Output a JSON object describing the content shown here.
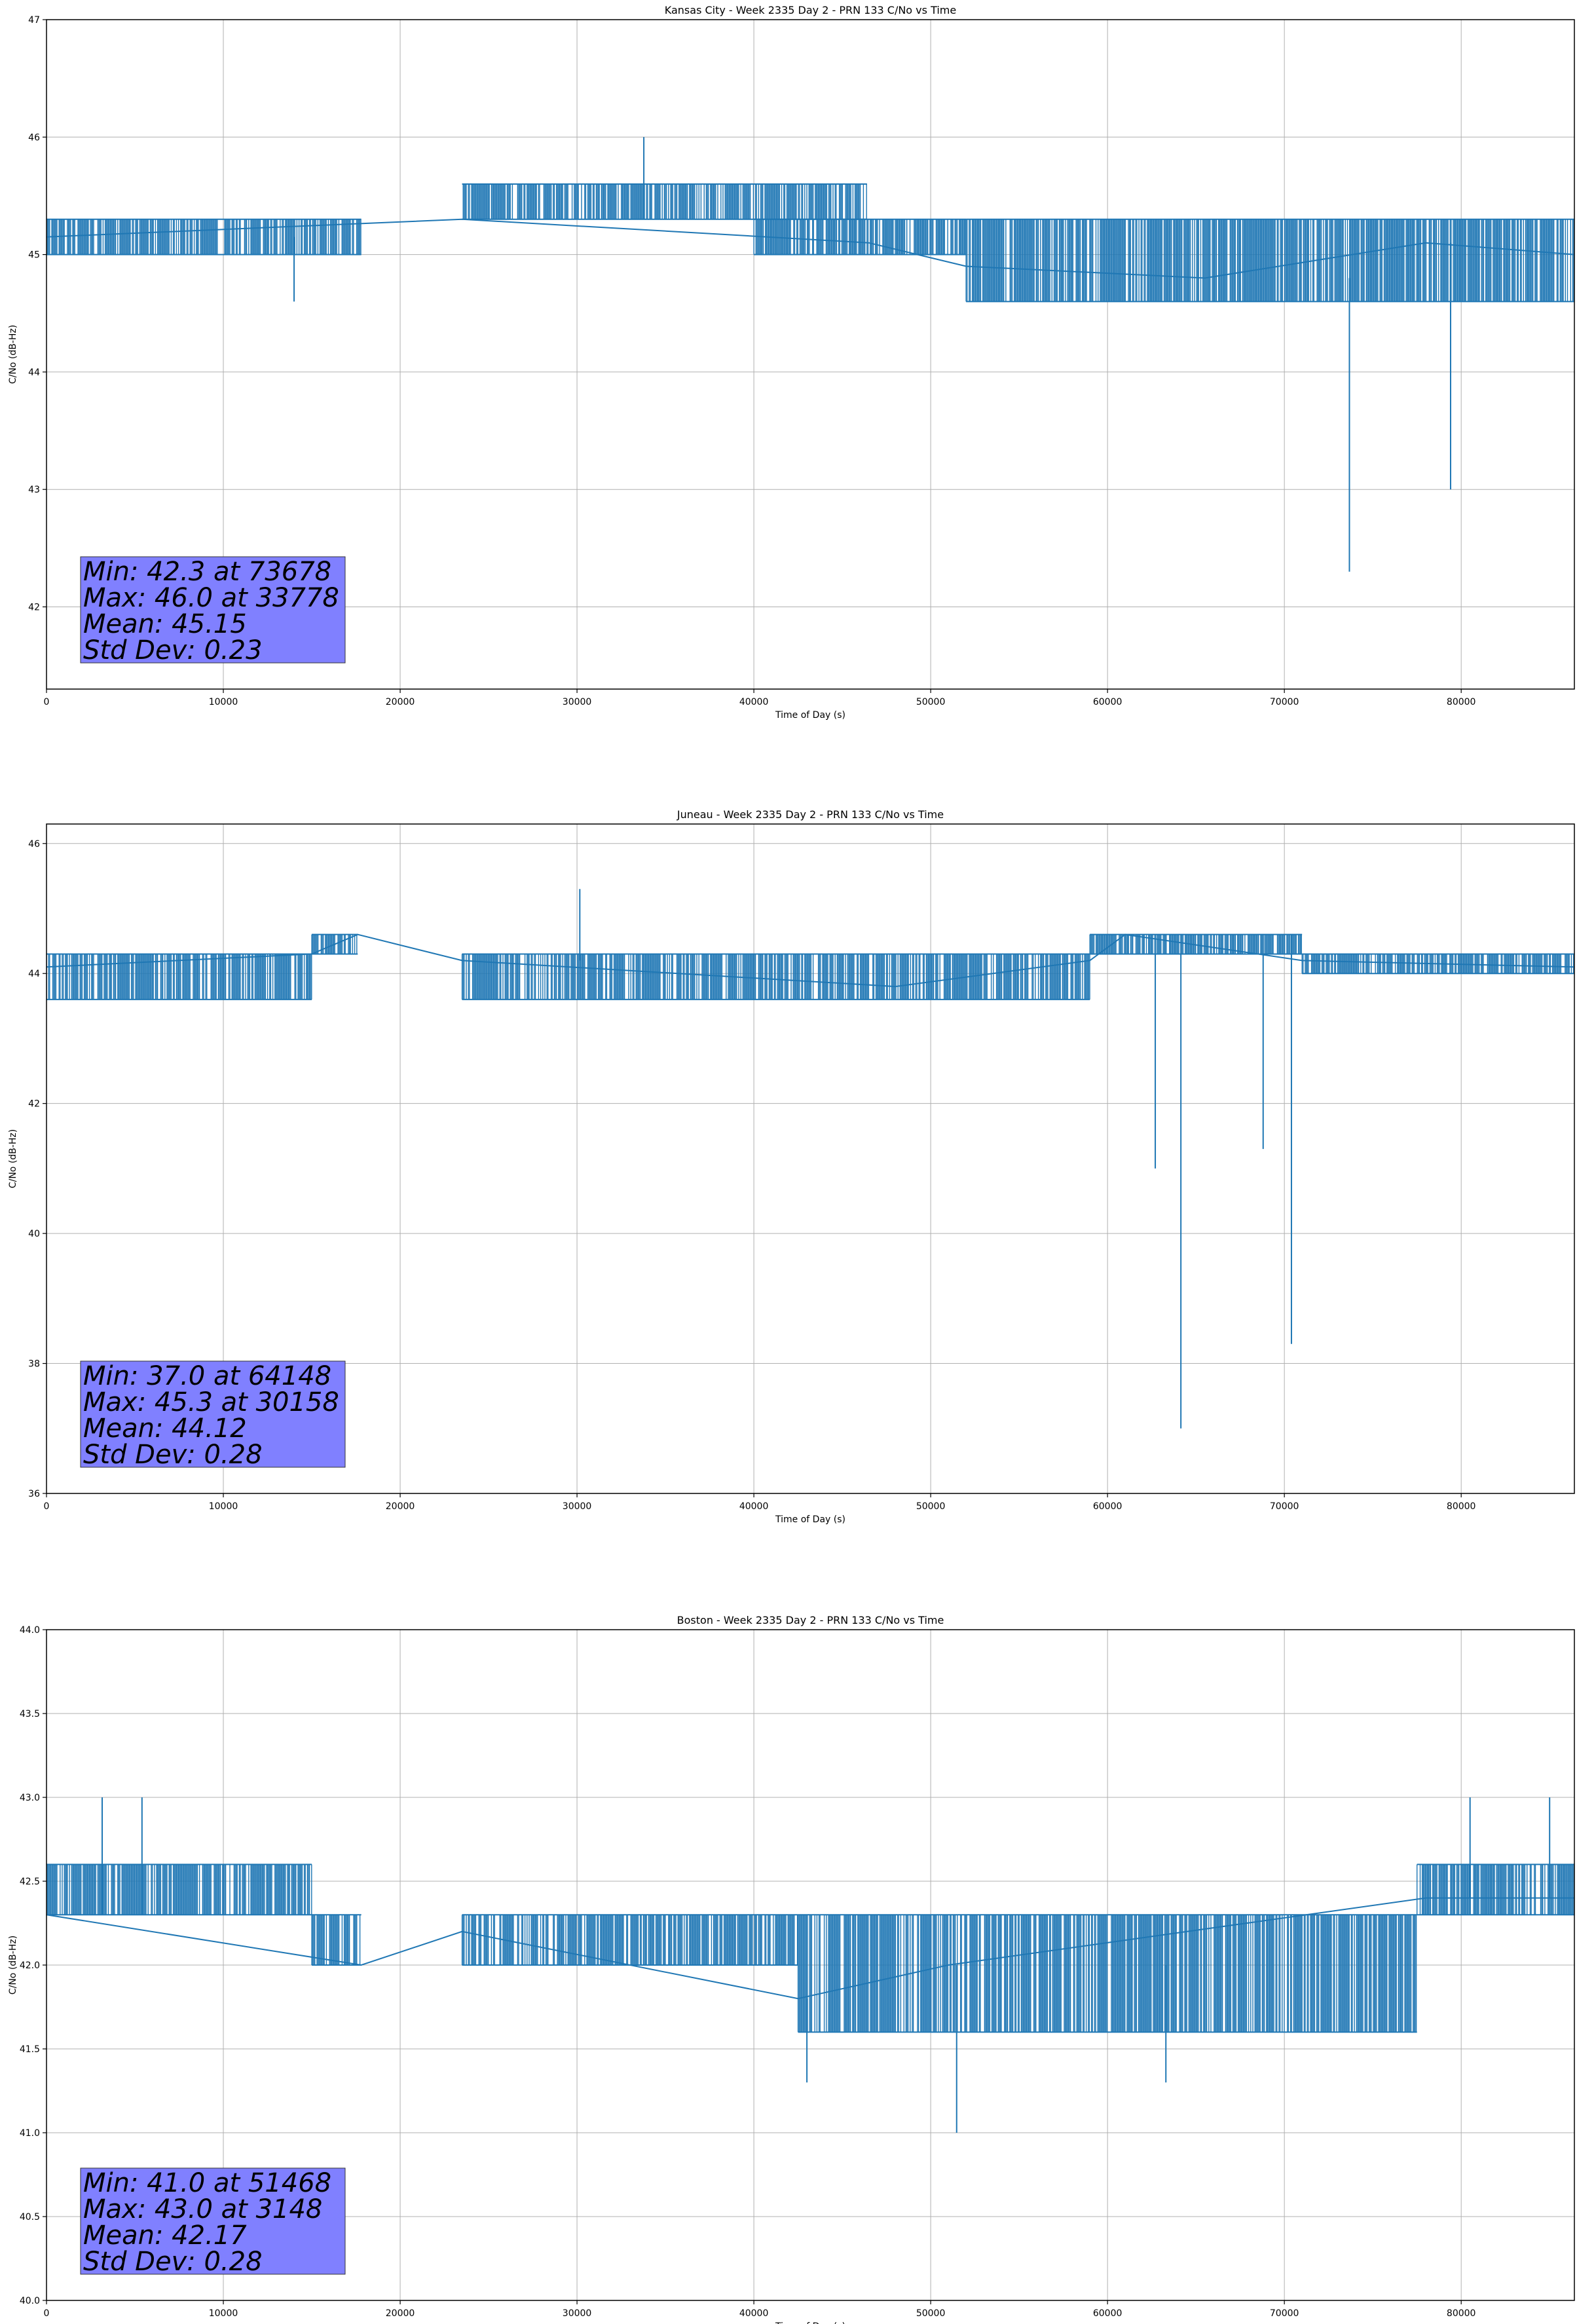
{
  "chart_data": [
    {
      "type": "line",
      "title": "Kansas City - Week 2335 Day 2 - PRN 133 C/No vs Time",
      "xlabel": "Time of Day (s)",
      "ylabel": "C/No (dB-Hz)",
      "xlim": [
        0,
        86400
      ],
      "ylim": [
        41.3,
        47.0
      ],
      "xticks": [
        0,
        10000,
        20000,
        30000,
        40000,
        50000,
        60000,
        70000,
        80000
      ],
      "yticks": [
        42,
        43,
        44,
        45,
        46,
        47
      ],
      "grid": true,
      "color": "#1f77b4",
      "base": [
        [
          0,
          45.15
        ],
        [
          23500,
          45.3
        ],
        [
          46500,
          45.1
        ],
        [
          52000,
          44.9
        ],
        [
          65500,
          44.8
        ],
        [
          78000,
          45.1
        ],
        [
          86400,
          45.0
        ]
      ],
      "bands": [
        {
          "x": [
            0,
            17800
          ],
          "y": [
            45.0,
            45.3
          ]
        },
        {
          "x": [
            23500,
            46400
          ],
          "y": [
            45.3,
            45.6
          ]
        },
        {
          "x": [
            40000,
            52000
          ],
          "y": [
            45.0,
            45.3
          ]
        },
        {
          "x": [
            52000,
            86400
          ],
          "y": [
            44.6,
            45.3
          ]
        }
      ],
      "spikes": [
        [
          14000,
          44.6
        ],
        [
          33778,
          46.0
        ],
        [
          73678,
          42.3
        ],
        [
          79400,
          43.0
        ]
      ],
      "stats": [
        "Min: 42.3 at 73678",
        "Max: 46.0 at 33778",
        "Mean: 45.15",
        "Std Dev: 0.23"
      ],
      "stats_box_color": "#8080ff"
    },
    {
      "type": "line",
      "title": "Juneau - Week 2335 Day 2 - PRN 133 C/No vs Time",
      "xlabel": "Time of Day (s)",
      "ylabel": "C/No (dB-Hz)",
      "xlim": [
        0,
        86400
      ],
      "ylim": [
        36.0,
        46.3
      ],
      "xticks": [
        0,
        10000,
        20000,
        30000,
        40000,
        50000,
        60000,
        70000,
        80000
      ],
      "yticks": [
        36,
        38,
        40,
        42,
        44,
        46
      ],
      "grid": true,
      "color": "#1f77b4",
      "base": [
        [
          0,
          44.1
        ],
        [
          15000,
          44.3
        ],
        [
          17600,
          44.6
        ],
        [
          23500,
          44.2
        ],
        [
          48000,
          43.8
        ],
        [
          59000,
          44.2
        ],
        [
          61000,
          44.6
        ],
        [
          71000,
          44.2
        ],
        [
          86400,
          44.1
        ]
      ],
      "bands": [
        {
          "x": [
            0,
            15000
          ],
          "y": [
            43.6,
            44.3
          ]
        },
        {
          "x": [
            15000,
            17600
          ],
          "y": [
            44.3,
            44.6
          ]
        },
        {
          "x": [
            23500,
            59000
          ],
          "y": [
            43.6,
            44.3
          ]
        },
        {
          "x": [
            59000,
            71000
          ],
          "y": [
            44.3,
            44.6
          ]
        },
        {
          "x": [
            71000,
            86400
          ],
          "y": [
            44.0,
            44.3
          ]
        }
      ],
      "spikes": [
        [
          30158,
          45.3
        ],
        [
          62700,
          41.0
        ],
        [
          64148,
          37.0
        ],
        [
          68800,
          41.3
        ],
        [
          70400,
          38.3
        ]
      ],
      "stats": [
        "Min: 37.0 at 64148",
        "Max: 45.3 at 30158",
        "Mean: 44.12",
        "Std Dev: 0.28"
      ],
      "stats_box_color": "#8080ff"
    },
    {
      "type": "line",
      "title": "Boston - Week 2335 Day 2 - PRN 133 C/No vs Time",
      "xlabel": "Time of Day (s)",
      "ylabel": "C/No (dB-Hz)",
      "xlim": [
        0,
        86400
      ],
      "ylim": [
        40.0,
        44.0
      ],
      "xticks": [
        0,
        10000,
        20000,
        30000,
        40000,
        50000,
        60000,
        70000,
        80000
      ],
      "yticks": [
        40.0,
        40.5,
        41.0,
        41.5,
        42.0,
        42.5,
        43.0,
        43.5,
        44.0
      ],
      "grid": true,
      "color": "#1f77b4",
      "base": [
        [
          0,
          42.3
        ],
        [
          17800,
          42.0
        ],
        [
          23500,
          42.2
        ],
        [
          42500,
          41.8
        ],
        [
          51000,
          42.0
        ],
        [
          78000,
          42.4
        ],
        [
          86400,
          42.4
        ]
      ],
      "bands": [
        {
          "x": [
            0,
            15000
          ],
          "y": [
            42.3,
            42.6
          ]
        },
        {
          "x": [
            15000,
            17800
          ],
          "y": [
            42.0,
            42.3
          ]
        },
        {
          "x": [
            23500,
            42500
          ],
          "y": [
            42.0,
            42.3
          ]
        },
        {
          "x": [
            42500,
            77500
          ],
          "y": [
            41.6,
            42.3
          ]
        },
        {
          "x": [
            77500,
            86400
          ],
          "y": [
            42.3,
            42.6
          ]
        }
      ],
      "spikes": [
        [
          3148,
          43.0
        ],
        [
          5400,
          43.0
        ],
        [
          43000,
          41.3
        ],
        [
          51468,
          41.0
        ],
        [
          63300,
          41.3
        ],
        [
          80500,
          43.0
        ],
        [
          85000,
          43.0
        ]
      ],
      "stats": [
        "Min: 41.0 at 51468",
        "Max: 43.0 at 3148",
        "Mean: 42.17",
        "Std Dev: 0.28"
      ],
      "stats_box_color": "#8080ff"
    }
  ]
}
